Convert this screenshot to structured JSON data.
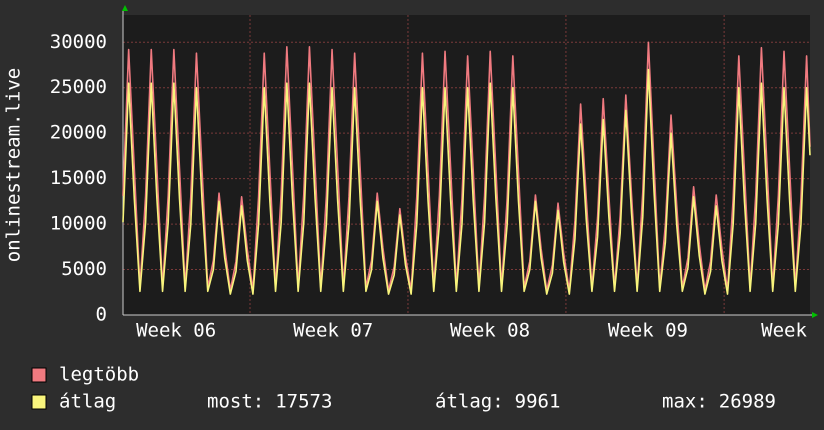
{
  "chart_data": {
    "type": "line",
    "ylabel": "onlinestream.live",
    "x": [
      0,
      0.25,
      0.5,
      0.75,
      1,
      1.25,
      1.5,
      1.75,
      2,
      2.25,
      2.5,
      2.75,
      3,
      3.25,
      3.5,
      3.75,
      4,
      4.25,
      4.5,
      4.75,
      5,
      5.25,
      5.5,
      5.75,
      6,
      6.25,
      6.5,
      6.75,
      7,
      7.25,
      7.5,
      7.75,
      8,
      8.25,
      8.5,
      8.75,
      9,
      9.25,
      9.5,
      9.75,
      10,
      10.25,
      10.5,
      10.75,
      11,
      11.25,
      11.5,
      11.75,
      12,
      12.25,
      12.5,
      12.75,
      13,
      13.25,
      13.5,
      13.75,
      14,
      14.25,
      14.5,
      14.75,
      15,
      15.25,
      15.5,
      15.75,
      16,
      16.25,
      16.5,
      16.75,
      17,
      17.25,
      17.5,
      17.75,
      18,
      18.25,
      18.5,
      18.75,
      19,
      19.25,
      19.5,
      19.75,
      20,
      20.25,
      20.5,
      20.75,
      21,
      21.25,
      21.5,
      21.75,
      22,
      22.25,
      22.5,
      22.75,
      23,
      23.25,
      23.5,
      23.75,
      24,
      24.25,
      24.5,
      24.75,
      25,
      25.25,
      25.5,
      25.75,
      26,
      26.25,
      26.5,
      26.75,
      27,
      27.25,
      27.5,
      27.75,
      28,
      28.25,
      28.5,
      28.75,
      29,
      29.25,
      29.5,
      29.75,
      30,
      30.25,
      30.4
    ],
    "series": [
      {
        "name": "legtöbb",
        "color": "#f07a80",
        "values": [
          13100,
          29200,
          16100,
          3000,
          13100,
          29200,
          16100,
          3000,
          13100,
          29200,
          16100,
          3000,
          13000,
          28800,
          15800,
          3000,
          6000,
          13400,
          7400,
          2700,
          5900,
          13000,
          7200,
          2700,
          13000,
          28800,
          15800,
          3000,
          13300,
          29500,
          16200,
          3000,
          13300,
          29500,
          16200,
          3000,
          13100,
          29200,
          16100,
          3000,
          13000,
          28800,
          15800,
          3000,
          6000,
          13400,
          7400,
          2700,
          5300,
          11700,
          6400,
          2700,
          13000,
          28800,
          15800,
          3000,
          13100,
          29000,
          16000,
          3000,
          12800,
          28500,
          15700,
          3000,
          13100,
          29000,
          16000,
          3000,
          12800,
          28500,
          15700,
          3000,
          5900,
          13200,
          7300,
          2700,
          5500,
          12300,
          6800,
          2700,
          10400,
          23200,
          12800,
          3000,
          10700,
          23800,
          13100,
          3000,
          10900,
          24200,
          13300,
          3000,
          13500,
          30000,
          16500,
          3000,
          9900,
          22000,
          12100,
          3000,
          6300,
          14100,
          7800,
          2700,
          5900,
          13200,
          7300,
          2700,
          12800,
          28500,
          15700,
          3000,
          13200,
          29400,
          16200,
          3000,
          13100,
          29000,
          16000,
          3000,
          12800,
          28500,
          18500
        ]
      },
      {
        "name": "átlag",
        "color": "#f8f47c",
        "values": [
          10200,
          25500,
          12800,
          2600,
          10200,
          25500,
          12800,
          2600,
          10200,
          25500,
          12800,
          2600,
          10000,
          25000,
          12500,
          2600,
          5000,
          12500,
          6300,
          2300,
          4800,
          12000,
          6000,
          2300,
          10000,
          25000,
          12500,
          2600,
          10200,
          25500,
          12800,
          2600,
          10200,
          25500,
          12800,
          2600,
          10000,
          25000,
          12500,
          2600,
          10000,
          25000,
          12500,
          2600,
          5000,
          12500,
          6300,
          2300,
          4400,
          11000,
          5500,
          2300,
          10000,
          25000,
          12500,
          2600,
          10000,
          25000,
          12500,
          2600,
          10000,
          25000,
          12500,
          2600,
          10200,
          25500,
          12800,
          2600,
          10000,
          25000,
          12500,
          2600,
          5000,
          12500,
          6300,
          2300,
          4600,
          11500,
          5800,
          2300,
          8400,
          21000,
          10500,
          2600,
          8600,
          21500,
          10800,
          2600,
          9000,
          22500,
          11300,
          2600,
          10800,
          27000,
          13500,
          2600,
          8000,
          20000,
          10000,
          2600,
          5200,
          13000,
          6500,
          2300,
          4800,
          12000,
          6000,
          2300,
          10000,
          25000,
          12500,
          2600,
          10200,
          25500,
          12800,
          2600,
          10000,
          25000,
          12500,
          2600,
          10000,
          25000,
          17573
        ]
      }
    ],
    "summary": [
      {
        "label": "most:",
        "value": 17573
      },
      {
        "label": "átlag:",
        "value": 9961
      },
      {
        "label": "max:",
        "value": 26989
      }
    ],
    "xlim": [
      0,
      30.4
    ],
    "xticks": [
      {
        "value": 2.35,
        "label": "Week 06"
      },
      {
        "value": 9.3,
        "label": "Week 07"
      },
      {
        "value": 16.24,
        "label": "Week 08"
      },
      {
        "value": 23.23,
        "label": "Week 09"
      },
      {
        "value": 29.25,
        "label": "Week"
      }
    ],
    "xgrid": [
      5.62,
      12.61,
      19.6,
      26.6
    ],
    "ylim": [
      0,
      33000
    ],
    "yticks": [
      0,
      5000,
      10000,
      15000,
      20000,
      25000,
      30000
    ],
    "grid": true
  }
}
